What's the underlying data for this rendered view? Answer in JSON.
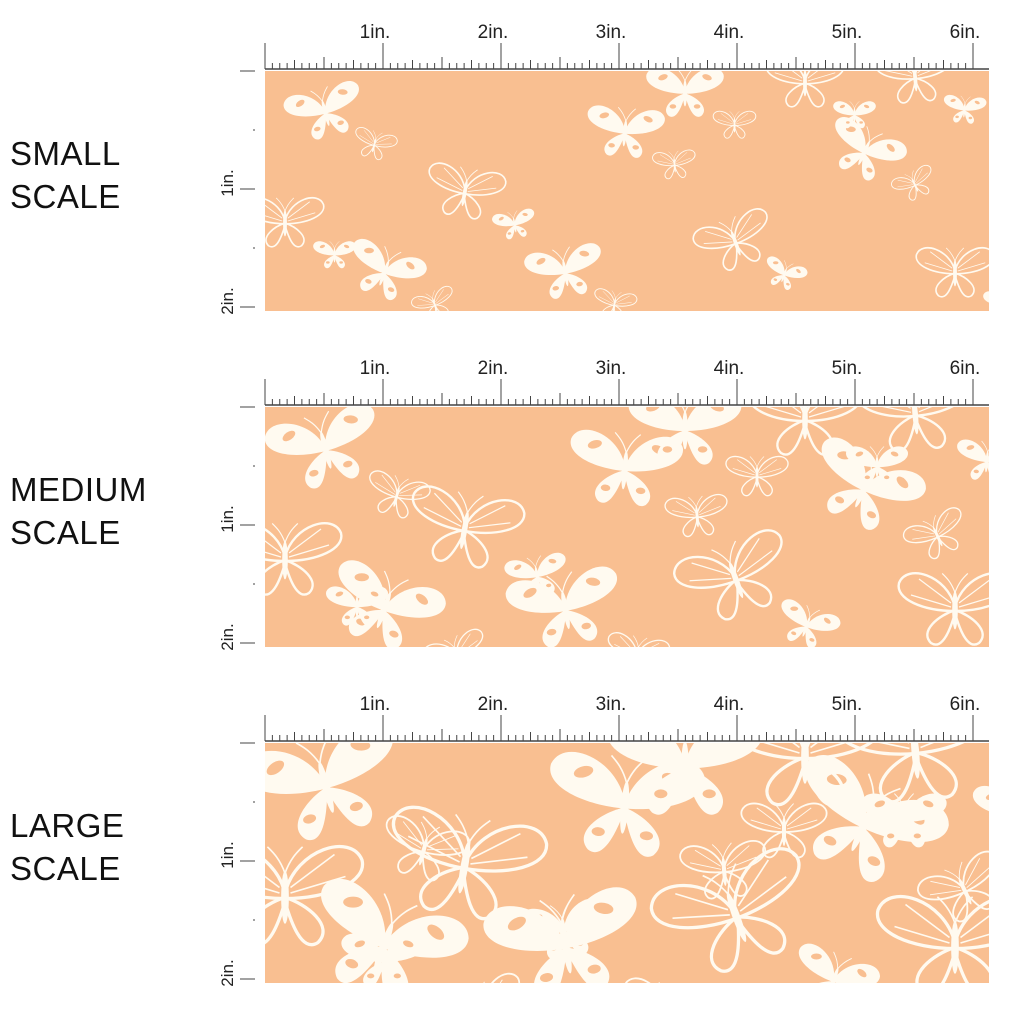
{
  "colors": {
    "fabric": "#f9bf91",
    "motif": "#fffaf0",
    "ruler": "#444444"
  },
  "ruler": {
    "top_labels": [
      "1in.",
      "2in.",
      "3in.",
      "4in.",
      "5in.",
      "6in."
    ],
    "left_labels": [
      "1in.",
      "2in."
    ]
  },
  "panels": [
    {
      "id": "small",
      "label_line1": "SMALL",
      "label_line2": "SCALE",
      "motif_scale": 0.55
    },
    {
      "id": "medium",
      "label_line1": "MEDIUM",
      "label_line2": "SCALE",
      "motif_scale": 0.8
    },
    {
      "id": "large",
      "label_line1": "LARGE",
      "label_line2": "SCALE",
      "motif_scale": 1.1
    }
  ],
  "motif": {
    "name": "white butterflies"
  }
}
